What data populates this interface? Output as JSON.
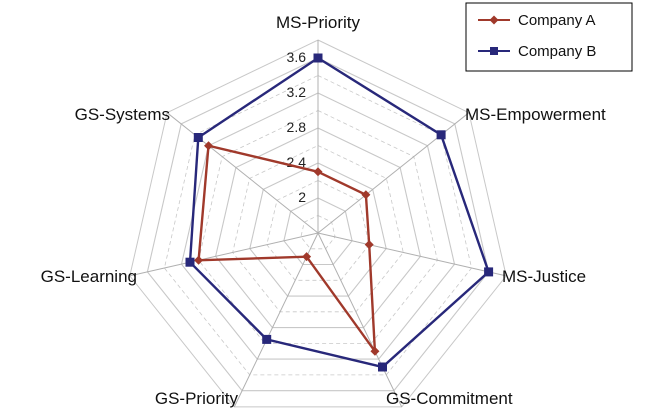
{
  "chart_data": {
    "type": "radar",
    "title": "",
    "axes": [
      "MS-Priority",
      "MS-Empowerment",
      "MS-Justice",
      "GS-Commitment",
      "GS-Priority",
      "GS-Learning",
      "GS-Systems"
    ],
    "r_ticks": [
      "2",
      "2.4",
      "2.8",
      "3.2",
      "3.6"
    ],
    "r_tick_values": [
      2.0,
      2.4,
      2.8,
      3.2,
      3.6
    ],
    "r_range": [
      1.6,
      3.6
    ],
    "grid": true,
    "legend_position": "top-right",
    "series": [
      {
        "name": "Company A",
        "color": "#A0392B",
        "marker": "diamond",
        "values": [
          2.3,
          2.3,
          2.2,
          3.1,
          1.9,
          3.0,
          3.2
        ]
      },
      {
        "name": "Company B",
        "color": "#28287A",
        "marker": "square",
        "values": [
          3.6,
          3.4,
          3.6,
          3.3,
          2.95,
          3.1,
          3.35
        ]
      }
    ]
  },
  "colors": {
    "grid": "#c8c8c8",
    "axis": "#b0b0b0",
    "legend_border": "#000000"
  }
}
